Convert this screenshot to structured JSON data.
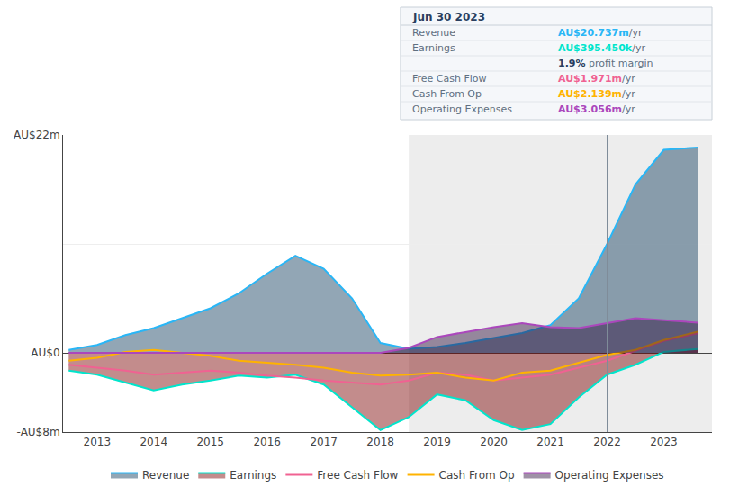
{
  "chart_data": {
    "type": "line",
    "xlim": [
      2012.4,
      2023.85
    ],
    "xticks": [
      2013,
      2014,
      2015,
      2016,
      2017,
      2018,
      2019,
      2020,
      2021,
      2022,
      2023
    ],
    "ylim": [
      -8,
      22
    ],
    "yticks": [
      {
        "value": 22,
        "label": "AU$22m"
      },
      {
        "value": 11,
        "label": null
      },
      {
        "value": 0,
        "label": "AU$0"
      },
      {
        "value": -8,
        "label": "-AU$8m"
      }
    ],
    "grid": true,
    "legend": "bottom",
    "x": [
      2012.5,
      2013.0,
      2013.5,
      2014.0,
      2014.5,
      2015.0,
      2015.5,
      2016.0,
      2016.5,
      2017.0,
      2017.5,
      2018.0,
      2018.5,
      2019.0,
      2019.5,
      2020.0,
      2020.5,
      2021.0,
      2021.5,
      2022.0,
      2022.5,
      2023.0,
      2023.6
    ],
    "series": [
      {
        "name": "Revenue",
        "type": "area",
        "color": "#29b6f6",
        "fill_color": "#0d3a5c",
        "values": [
          0.3,
          0.8,
          1.8,
          2.5,
          3.5,
          4.5,
          6.0,
          8.0,
          9.8,
          8.5,
          5.5,
          1.0,
          0.4,
          0.6,
          1.0,
          1.5,
          2.0,
          2.8,
          5.5,
          11.0,
          17.0,
          20.5,
          20.737
        ]
      },
      {
        "name": "Earnings",
        "type": "area",
        "color": "#00e5cc",
        "fill_color": "#7a0000",
        "values": [
          -1.8,
          -2.2,
          -3.0,
          -3.8,
          -3.2,
          -2.8,
          -2.3,
          -2.5,
          -2.2,
          -3.2,
          -5.5,
          -7.8,
          -6.5,
          -4.2,
          -4.8,
          -6.8,
          -7.8,
          -7.2,
          -4.5,
          -2.2,
          -1.2,
          0.1,
          0.395
        ]
      },
      {
        "name": "Free Cash Flow",
        "type": "line",
        "color": "#f06292",
        "values": [
          -1.2,
          -1.5,
          -1.8,
          -2.2,
          -2.0,
          -1.8,
          -2.0,
          -2.3,
          -2.5,
          -2.8,
          -3.0,
          -3.2,
          -2.8,
          -2.0,
          -2.2,
          -2.8,
          -2.5,
          -2.2,
          -1.5,
          -0.8,
          0.2,
          1.2,
          1.971
        ]
      },
      {
        "name": "Cash From Op",
        "type": "line",
        "color": "#ffb300",
        "values": [
          -0.8,
          -0.5,
          0.1,
          0.3,
          0.0,
          -0.3,
          -0.8,
          -1.0,
          -1.2,
          -1.5,
          -2.0,
          -2.3,
          -2.2,
          -2.0,
          -2.5,
          -2.8,
          -2.0,
          -1.8,
          -1.0,
          -0.2,
          0.3,
          1.3,
          2.139
        ]
      },
      {
        "name": "Operating Expenses",
        "type": "area",
        "color": "#ab47bc",
        "fill_color": "#2a0a3a",
        "values": [
          0.0,
          0.0,
          0.0,
          0.0,
          0.0,
          0.0,
          0.0,
          0.0,
          0.0,
          0.0,
          0.0,
          0.0,
          0.5,
          1.6,
          2.1,
          2.6,
          3.0,
          2.6,
          2.5,
          3.0,
          3.5,
          3.3,
          3.056
        ]
      }
    ],
    "shaded_x": [
      2018.5,
      2023.85
    ],
    "vline_x": 2022.0,
    "info_box": {
      "title": "Jun 30 2023",
      "rows": [
        {
          "label": "Revenue",
          "value": "AU$20.737m",
          "unit": "/yr",
          "color": "#29b6f6"
        },
        {
          "label": "Earnings",
          "value": "AU$395.450k",
          "unit": "/yr",
          "color": "#00e5cc"
        },
        {
          "label": null,
          "value": "1.9%",
          "unit": " profit margin"
        },
        {
          "label": "Free Cash Flow",
          "value": "AU$1.971m",
          "unit": "/yr",
          "color": "#f06292"
        },
        {
          "label": "Cash From Op",
          "value": "AU$2.139m",
          "unit": "/yr",
          "color": "#ffb300"
        },
        {
          "label": "Operating Expenses",
          "value": "AU$3.056m",
          "unit": "/yr",
          "color": "#ab47bc"
        }
      ]
    }
  }
}
